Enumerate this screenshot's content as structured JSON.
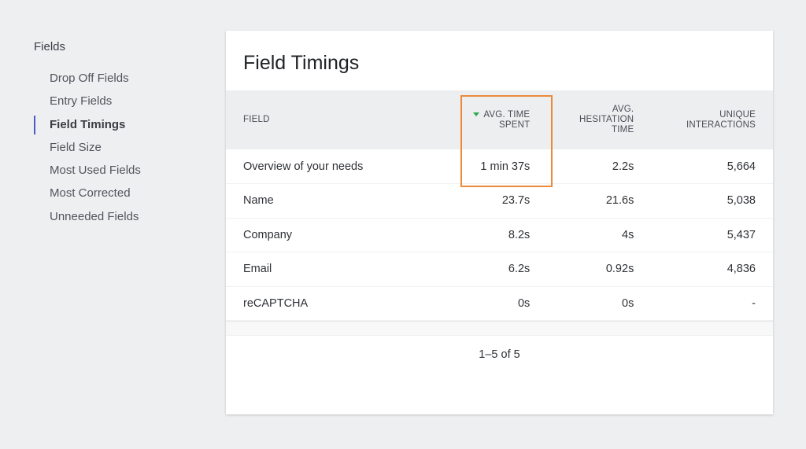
{
  "sidebar": {
    "title": "Fields",
    "items": [
      {
        "label": "Drop Off Fields",
        "active": false
      },
      {
        "label": "Entry Fields",
        "active": false
      },
      {
        "label": "Field Timings",
        "active": true
      },
      {
        "label": "Field Size",
        "active": false
      },
      {
        "label": "Most Used Fields",
        "active": false
      },
      {
        "label": "Most Corrected",
        "active": false
      },
      {
        "label": "Unneeded Fields",
        "active": false
      }
    ]
  },
  "card": {
    "title": "Field Timings",
    "columns": [
      {
        "label": "FIELD"
      },
      {
        "label": "AVG. TIME SPENT",
        "line1": "AVG. TIME",
        "line2": "SPENT",
        "sorted": "desc",
        "sort_icon": "sort-down-triangle-icon",
        "sort_color": "#2fa84f"
      },
      {
        "label": "AVG. HESITATION TIME",
        "line1": "AVG.",
        "line2": "HESITATION",
        "line3": "TIME"
      },
      {
        "label": "UNIQUE INTERACTIONS",
        "line1": "UNIQUE",
        "line2": "INTERACTIONS"
      }
    ],
    "rows": [
      {
        "field": "Overview of your needs",
        "avg_time": "1 min 37s",
        "hesitation": "2.2s",
        "interactions": "5,664"
      },
      {
        "field": "Name",
        "avg_time": "23.7s",
        "hesitation": "21.6s",
        "interactions": "5,038"
      },
      {
        "field": "Company",
        "avg_time": "8.2s",
        "hesitation": "4s",
        "interactions": "5,437"
      },
      {
        "field": "Email",
        "avg_time": "6.2s",
        "hesitation": "0.92s",
        "interactions": "4,836"
      },
      {
        "field": "reCAPTCHA",
        "avg_time": "0s",
        "hesitation": "0s",
        "interactions": "-"
      }
    ],
    "pagination": "1–5 of 5"
  },
  "annotation": {
    "highlight_color": "#ec8a3a"
  }
}
